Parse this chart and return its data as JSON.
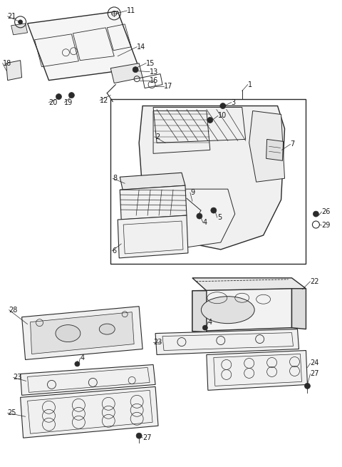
{
  "bg_color": "#ffffff",
  "line_color": "#2a2a2a",
  "text_color": "#1a1a1a",
  "fig_width": 4.8,
  "fig_height": 6.55,
  "dpi": 100,
  "lw_main": 1.0,
  "lw_detail": 0.6,
  "lw_thin": 0.4,
  "fs_label": 7.0
}
